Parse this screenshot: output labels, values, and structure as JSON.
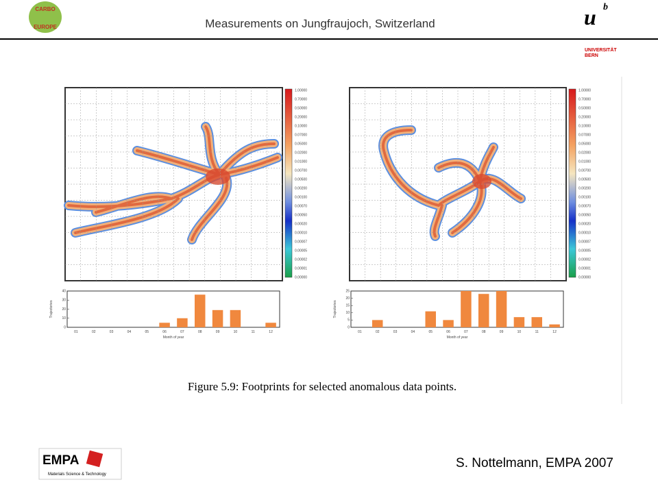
{
  "header": {
    "title": "Measurements on Jungfraujoch, Switzerland",
    "logo_left": [
      "CARBO",
      "EUROPE"
    ],
    "logo_right": {
      "mark": "u",
      "superscript": "b",
      "lines": [
        "UNIVERSITÄT",
        "BERN"
      ]
    }
  },
  "figure": {
    "caption": "Figure 5.9: Footprints for selected anomalous data points.",
    "colorbar_labels": [
      "1.00000",
      "0.70000",
      "0.50000",
      "0.20000",
      "0.10000",
      "0.07000",
      "0.05000",
      "0.02000",
      "0.01000",
      "0.00700",
      "0.00500",
      "0.00200",
      "0.00100",
      "0.00070",
      "0.00050",
      "0.00020",
      "0.00010",
      "0.00007",
      "0.00005",
      "0.00002",
      "0.00001",
      "0.00000"
    ]
  },
  "chart_data": [
    {
      "type": "bar",
      "x_label": "Month of year",
      "y_label": "Trajectories",
      "categories": [
        "01",
        "02",
        "03",
        "04",
        "05",
        "06",
        "07",
        "08",
        "09",
        "10",
        "11",
        "12"
      ],
      "values": [
        0,
        0,
        0,
        0,
        0,
        5,
        10,
        36,
        19,
        19,
        0,
        5
      ],
      "ylim": [
        0,
        40
      ],
      "yticks": [
        0,
        10,
        20,
        30,
        40
      ],
      "color": "#f0883e"
    },
    {
      "type": "bar",
      "x_label": "Month of year",
      "y_label": "Trajectories",
      "categories": [
        "01",
        "02",
        "03",
        "04",
        "05",
        "06",
        "07",
        "08",
        "09",
        "10",
        "11",
        "12"
      ],
      "values": [
        0,
        5,
        0,
        0,
        11,
        5,
        25,
        23,
        25,
        7,
        7,
        2
      ],
      "ylim": [
        0,
        25
      ],
      "yticks": [
        0,
        5,
        10,
        15,
        20,
        25
      ],
      "color": "#f0883e"
    }
  ],
  "footer": {
    "author": "S. Nottelmann, EMPA 2007",
    "logo": "EMPA",
    "logo_subtitle": "Materials Science & Technology"
  }
}
